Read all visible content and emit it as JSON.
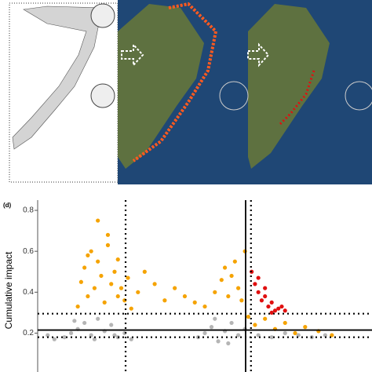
{
  "chart_data": {
    "type": "scatter",
    "panel_label": "(d)",
    "y_label": "Cumulative impact",
    "xlim": [
      0,
      100
    ],
    "ylim": [
      0.01,
      0.85
    ],
    "yticks": [
      0.2,
      0.4,
      0.6,
      0.8
    ],
    "reference_lines": [
      {
        "axis": "y",
        "value": 0.215,
        "style": "solid"
      },
      {
        "axis": "y",
        "value": 0.295,
        "style": "dotted"
      },
      {
        "axis": "y",
        "value": 0.18,
        "style": "dotted"
      },
      {
        "axis": "x",
        "value": 26.3,
        "style": "dotted"
      },
      {
        "axis": "x",
        "value": 62.2,
        "style": "solid"
      },
      {
        "axis": "x",
        "value": 63.8,
        "style": "dotted"
      }
    ],
    "series": [
      {
        "color": "#b5b5b5",
        "x": [
          8,
          10,
          12,
          14,
          16,
          18,
          20,
          22,
          24,
          26,
          28,
          11,
          17,
          23,
          48,
          50,
          52,
          54,
          56,
          58,
          60,
          62,
          53,
          57,
          66,
          70,
          74,
          78,
          82,
          86,
          5,
          3
        ],
        "values": [
          0.18,
          0.2,
          0.22,
          0.25,
          0.19,
          0.27,
          0.21,
          0.24,
          0.18,
          0.2,
          0.17,
          0.26,
          0.17,
          0.19,
          0.18,
          0.2,
          0.23,
          0.16,
          0.21,
          0.25,
          0.19,
          0.22,
          0.27,
          0.15,
          0.19,
          0.18,
          0.2,
          0.19,
          0.18,
          0.19,
          0.17,
          0.19
        ]
      },
      {
        "color": "#f5a300",
        "x": [
          12,
          13,
          14,
          15,
          16,
          17,
          18,
          19,
          20,
          21,
          22,
          23,
          24,
          25,
          26,
          27,
          28,
          30,
          32,
          35,
          38,
          41,
          44,
          47,
          50,
          53,
          55,
          56,
          57,
          58,
          59,
          60,
          61,
          62,
          63,
          65,
          68,
          71,
          74,
          77,
          80,
          84,
          88,
          18,
          21,
          15,
          24
        ],
        "values": [
          0.33,
          0.45,
          0.52,
          0.38,
          0.6,
          0.42,
          0.55,
          0.48,
          0.35,
          0.63,
          0.44,
          0.5,
          0.38,
          0.42,
          0.36,
          0.47,
          0.32,
          0.4,
          0.5,
          0.44,
          0.36,
          0.42,
          0.38,
          0.35,
          0.33,
          0.4,
          0.46,
          0.52,
          0.38,
          0.48,
          0.55,
          0.42,
          0.36,
          0.6,
          0.28,
          0.24,
          0.27,
          0.22,
          0.25,
          0.2,
          0.23,
          0.21,
          0.19,
          0.75,
          0.68,
          0.58,
          0.56
        ]
      },
      {
        "color": "#e01010",
        "x": [
          64,
          65,
          66,
          67,
          68,
          69,
          70,
          71,
          72,
          66,
          68,
          70,
          73,
          74
        ],
        "values": [
          0.5,
          0.44,
          0.4,
          0.36,
          0.38,
          0.33,
          0.35,
          0.31,
          0.32,
          0.47,
          0.42,
          0.3,
          0.33,
          0.31
        ]
      }
    ]
  }
}
